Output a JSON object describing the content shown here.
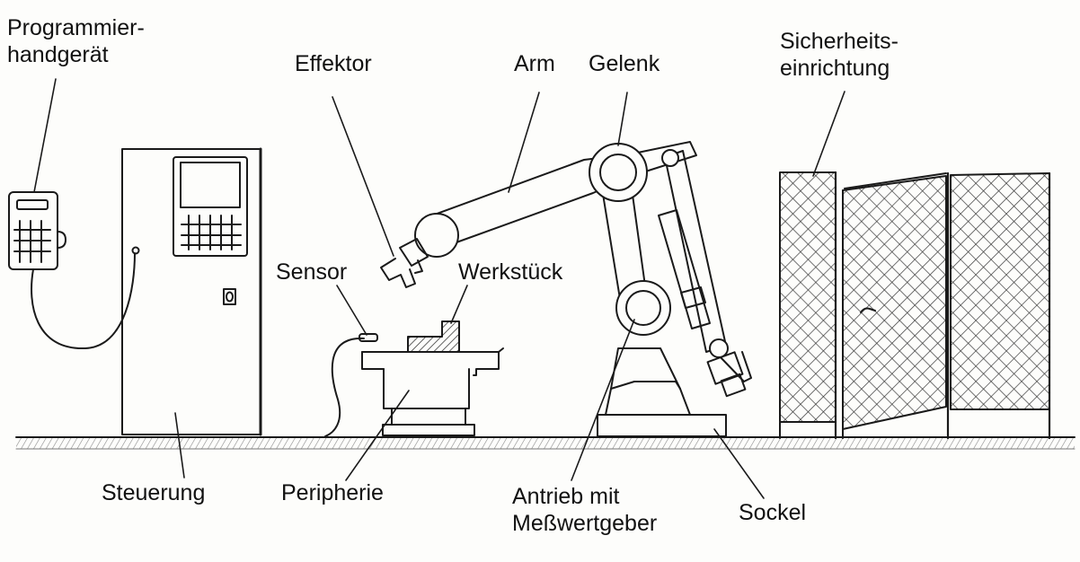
{
  "labels": {
    "programmierhandgeraet": [
      "Programmier-",
      "handgerät"
    ],
    "effektor": "Effektor",
    "arm": "Arm",
    "gelenk": "Gelenk",
    "sicherheitseinrichtung": [
      "Sicherheits-",
      "einrichtung"
    ],
    "sensor": "Sensor",
    "werkstueck": "Werkstück",
    "steuerung": "Steuerung",
    "peripherie": "Peripherie",
    "antrieb": [
      "Antrieb mit",
      "Meßwertgeber"
    ],
    "sockel": "Sockel"
  },
  "colors": {
    "ink": "#1a1a1a",
    "paper": "#fdfdfb",
    "floor": "#bdbdbd",
    "hatch": "#555555"
  }
}
